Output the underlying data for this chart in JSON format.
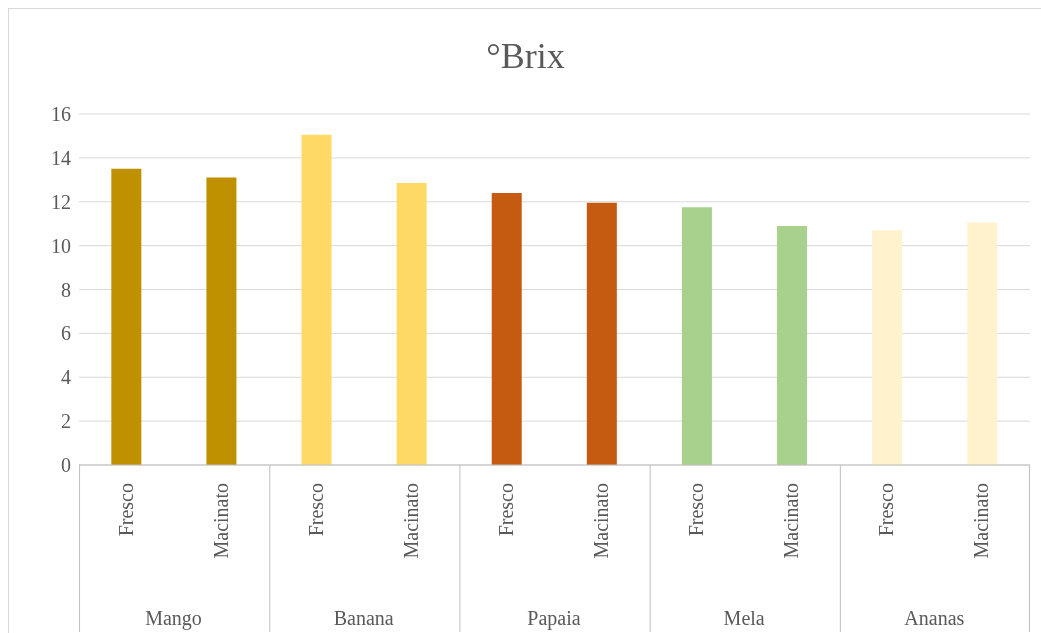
{
  "chart_data": {
    "type": "bar",
    "title": "°Brix",
    "categories": [
      "Fresco",
      "Macinato",
      "Fresco",
      "Macinato",
      "Fresco",
      "Macinato",
      "Fresco",
      "Macinato",
      "Fresco",
      "Macinato"
    ],
    "values": [
      13.5,
      13.1,
      15.05,
      12.85,
      12.4,
      11.95,
      11.75,
      10.9,
      10.7,
      11.05
    ],
    "colors": [
      "#bf9000",
      "#bf9000",
      "#ffd966",
      "#ffd966",
      "#c55a11",
      "#c55a11",
      "#a9d18e",
      "#a9d18e",
      "#fff2cc",
      "#fff2cc"
    ],
    "annotations": [
      "Mango",
      "Banana",
      "Papaia",
      "Mela",
      "Ananas"
    ],
    "ylim": [
      0,
      16
    ],
    "yticks": [
      0,
      2,
      4,
      6,
      8,
      10,
      12,
      14,
      16
    ],
    "grid": "y"
  }
}
